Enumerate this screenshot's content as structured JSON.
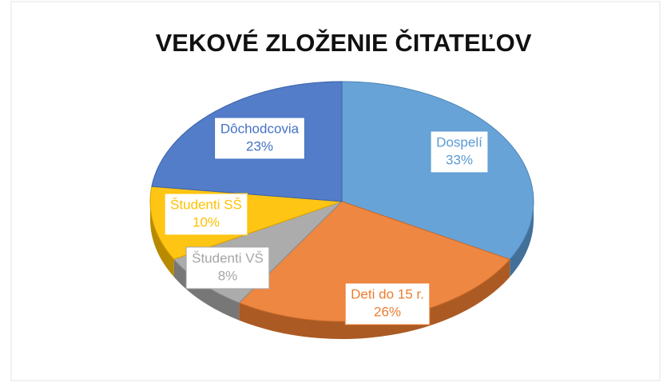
{
  "chart_data": {
    "type": "pie",
    "title": "VEKOVÉ ZLOŽENIE ČITATEĽOV",
    "categories": [
      "Dospelí",
      "Deti do 15 r.",
      "Študenti VŠ",
      "Študenti SŠ",
      "Dôchodcovia"
    ],
    "values": [
      33,
      26,
      8,
      10,
      23
    ],
    "value_labels": [
      "33%",
      "26%",
      "8%",
      "10%",
      "23%"
    ],
    "colors": [
      "#5b9bd5",
      "#ed7d31",
      "#a5a5a5",
      "#ffc000",
      "#4472c4"
    ]
  }
}
